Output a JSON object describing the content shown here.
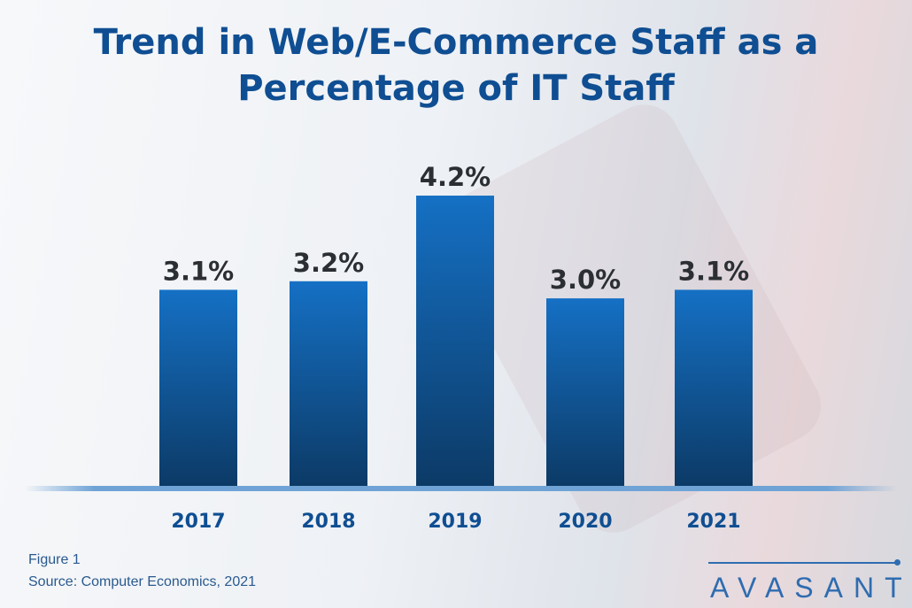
{
  "chart_data": {
    "type": "bar",
    "title": "Trend in Web/E-Commerce Staff as a Percentage of IT Staff",
    "categories": [
      "2017",
      "2018",
      "2019",
      "2020",
      "2021"
    ],
    "values": [
      3.1,
      3.2,
      4.2,
      3.0,
      3.1
    ],
    "data_labels": [
      "3.1%",
      "3.2%",
      "4.2%",
      "3.0%",
      "3.1%"
    ],
    "xlabel": "",
    "ylabel": "",
    "ylim": [
      0.8,
      4.5
    ],
    "grid": false,
    "legend": "none",
    "colors": {
      "bar_top": "#1570c4",
      "bar_bottom": "#0c3a66",
      "title": "#0f4e92",
      "labels": "#2b2f33",
      "ticks": "#0f4e92",
      "baseline": "#6fa3d6"
    }
  },
  "caption": {
    "figure": "Figure 1",
    "source": "Source: Computer Economics, 2021"
  },
  "logo": {
    "text": "AVASANT"
  }
}
